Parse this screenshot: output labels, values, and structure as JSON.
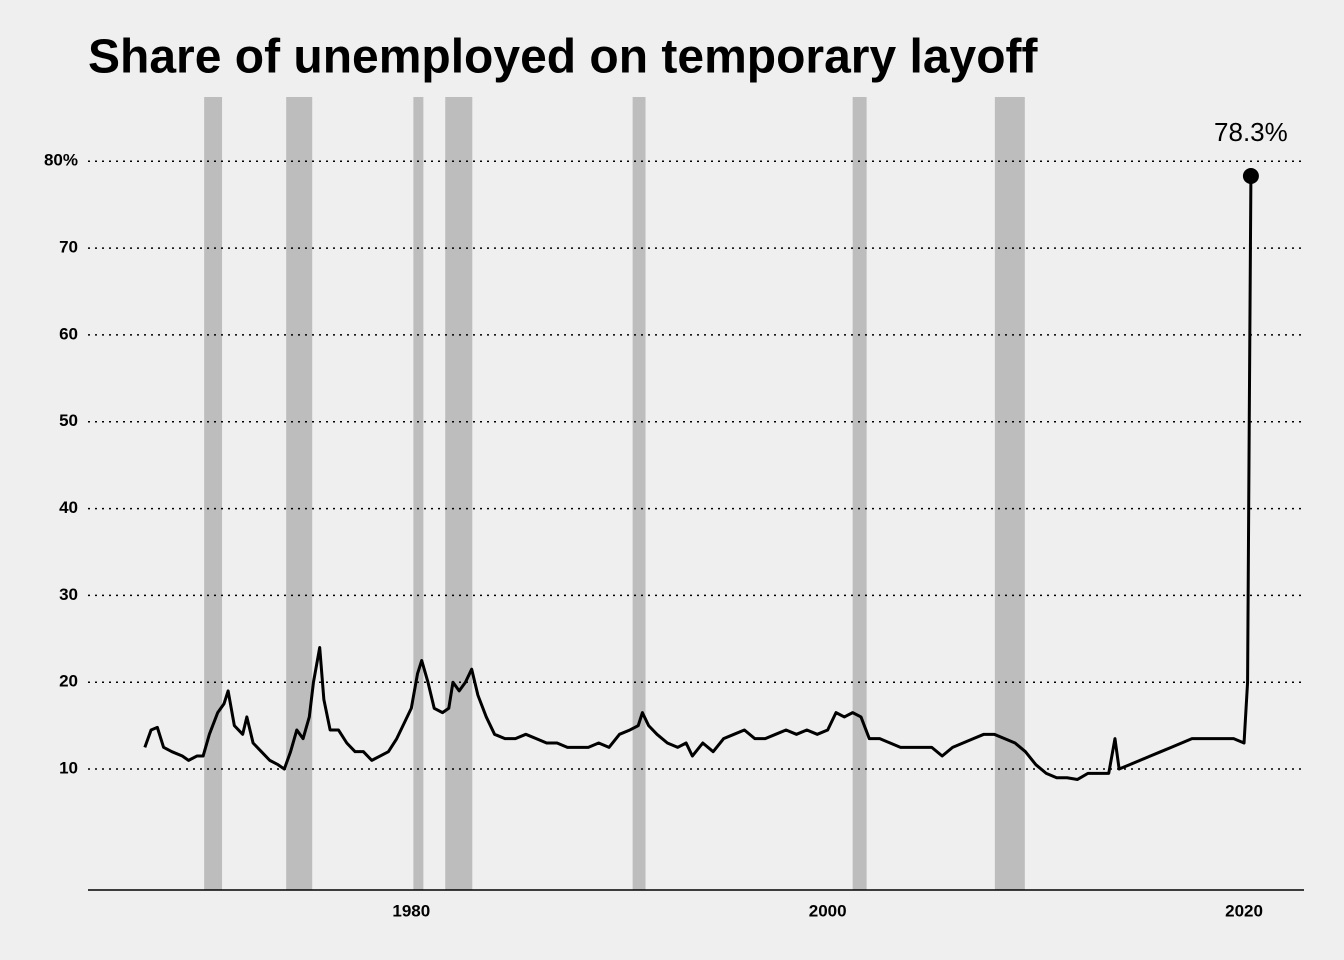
{
  "chart_data": {
    "type": "line",
    "title": "Share of unemployed on temporary layoff",
    "x": [
      1967.2,
      1967.5,
      1967.8,
      1968.1,
      1968.5,
      1969,
      1969.3,
      1969.7,
      1970,
      1970.3,
      1970.7,
      1971,
      1971.2,
      1971.5,
      1971.9,
      1972.1,
      1972.4,
      1972.8,
      1973.2,
      1973.6,
      1973.9,
      1974.2,
      1974.5,
      1974.8,
      1975.1,
      1975.3,
      1975.6,
      1975.8,
      1976.1,
      1976.5,
      1976.9,
      1977.3,
      1977.7,
      1978.1,
      1978.5,
      1978.9,
      1979.3,
      1979.6,
      1980,
      1980.3,
      1980.5,
      1980.8,
      1981.1,
      1981.5,
      1981.8,
      1982,
      1982.3,
      1982.6,
      1982.9,
      1983.2,
      1983.6,
      1984,
      1984.5,
      1985,
      1985.5,
      1986,
      1986.5,
      1987,
      1987.5,
      1988,
      1988.5,
      1989,
      1989.5,
      1990,
      1990.5,
      1990.9,
      1991.1,
      1991.4,
      1991.8,
      1992.3,
      1992.8,
      1993.2,
      1993.5,
      1994,
      1994.5,
      1995,
      1995.5,
      1996,
      1996.5,
      1997,
      1997.5,
      1998,
      1998.5,
      1999,
      1999.5,
      2000,
      2000.4,
      2000.8,
      2001.2,
      2001.6,
      2002,
      2002.5,
      2003,
      2003.5,
      2004,
      2004.5,
      2005,
      2005.5,
      2006,
      2006.5,
      2007,
      2007.5,
      2008,
      2008.5,
      2009,
      2009.5,
      2010,
      2010.5,
      2011,
      2011.5,
      2012,
      2012.5,
      2013,
      2013.5,
      2013.8,
      2014,
      2014.5,
      2015,
      2015.5,
      2016,
      2016.5,
      2017,
      2017.5,
      2018,
      2018.5,
      2019,
      2019.5,
      2020,
      2020.17,
      2020.25,
      2020.33
    ],
    "series": [
      {
        "color": "#000000",
        "values": [
          12.5,
          14.5,
          14.8,
          12.5,
          12,
          11.5,
          11,
          11.5,
          11.5,
          14,
          16.5,
          17.5,
          19,
          15,
          14,
          16,
          13,
          12,
          11,
          10.5,
          10,
          12,
          14.5,
          13.5,
          16,
          20,
          24,
          18,
          14.5,
          14.5,
          13,
          12,
          12,
          11,
          11.5,
          12,
          13.5,
          15,
          17,
          21,
          22.5,
          20,
          17,
          16.5,
          17,
          20,
          19,
          20,
          21.5,
          18.5,
          16,
          14,
          13.5,
          13.5,
          14,
          13.5,
          13,
          13,
          12.5,
          12.5,
          12.5,
          13,
          12.5,
          14,
          14.5,
          15,
          16.5,
          15,
          14,
          13,
          12.5,
          13,
          11.5,
          13,
          12,
          13.5,
          14,
          14.5,
          13.5,
          13.5,
          14,
          14.5,
          14,
          14.5,
          14,
          14.5,
          16.5,
          16,
          16.5,
          16,
          13.5,
          13.5,
          13,
          12.5,
          12.5,
          12.5,
          12.5,
          11.5,
          12.5,
          13,
          13.5,
          14,
          14,
          13.5,
          13,
          12,
          10.5,
          9.5,
          9,
          9,
          8.8,
          9.5,
          9.5,
          9.5,
          13.5,
          10,
          10.5,
          11,
          11.5,
          12,
          12.5,
          13,
          13.5,
          13.5,
          13.5,
          13.5,
          13.5,
          13,
          20,
          50,
          78.3
        ]
      }
    ],
    "highlight": {
      "x": 2020.33,
      "value": 78.3,
      "label": "78.3%"
    },
    "recessions": [
      [
        1970.05,
        1970.91
      ],
      [
        1973.99,
        1975.24
      ],
      [
        1980.1,
        1980.58
      ],
      [
        1981.63,
        1982.93
      ],
      [
        1990.63,
        1991.25
      ],
      [
        2001.2,
        2001.87
      ],
      [
        2008.03,
        2009.47
      ]
    ],
    "recession_color": "#bdbdbd",
    "xlim": [
      1964.47,
      2022.88
    ],
    "xticks": [
      1980,
      2000,
      2020
    ],
    "ylim": [
      -3.93,
      87.4
    ],
    "yticks": [
      10,
      20,
      30,
      40,
      50,
      60,
      70,
      {
        "value": 80,
        "label": "80%"
      }
    ],
    "grid": true
  }
}
